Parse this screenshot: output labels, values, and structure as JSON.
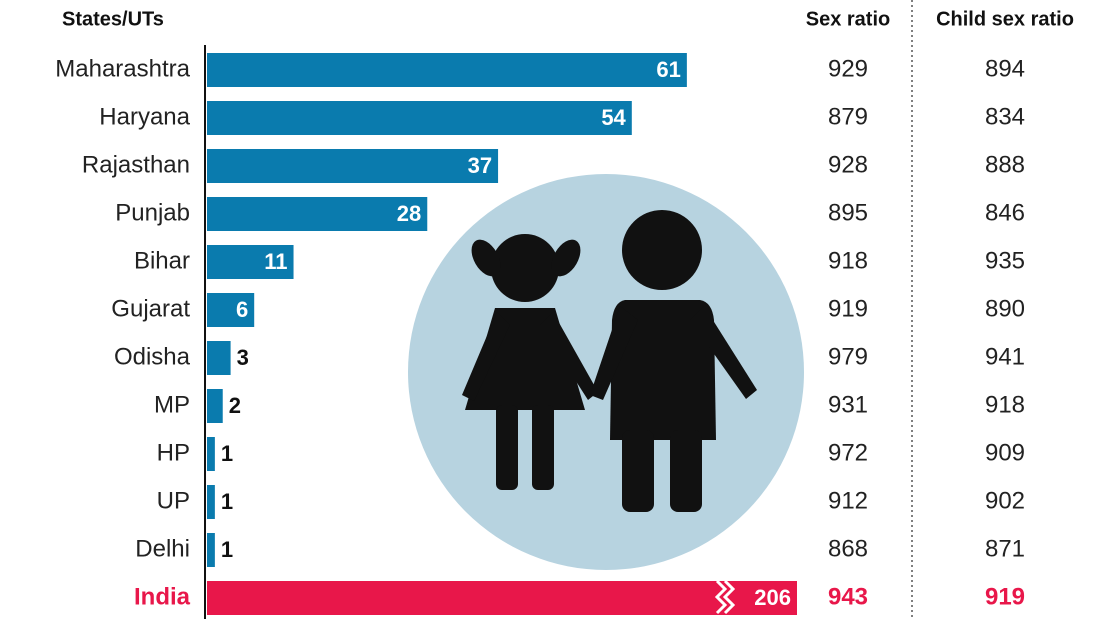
{
  "chart_data": {
    "type": "bar",
    "orientation": "horizontal",
    "headers": {
      "category": "States/UTs",
      "sex_ratio": "Sex ratio",
      "child_sex_ratio": "Child sex ratio"
    },
    "categories": [
      "Maharashtra",
      "Haryana",
      "Rajasthan",
      "Punjab",
      "Bihar",
      "Gujarat",
      "Odisha",
      "MP",
      "HP",
      "UP",
      "Delhi",
      "India"
    ],
    "values": [
      61,
      54,
      37,
      28,
      11,
      6,
      3,
      2,
      1,
      1,
      1,
      206
    ],
    "sex_ratio": [
      929,
      879,
      928,
      895,
      918,
      919,
      979,
      931,
      972,
      912,
      868,
      943
    ],
    "child_sex_ratio": [
      894,
      834,
      888,
      846,
      935,
      890,
      941,
      918,
      909,
      902,
      871,
      919
    ],
    "color": "#0a7bae",
    "highlight": {
      "index": 11,
      "color": "#e8174a"
    },
    "xlim": [
      0,
      75
    ],
    "axis_break": true
  }
}
